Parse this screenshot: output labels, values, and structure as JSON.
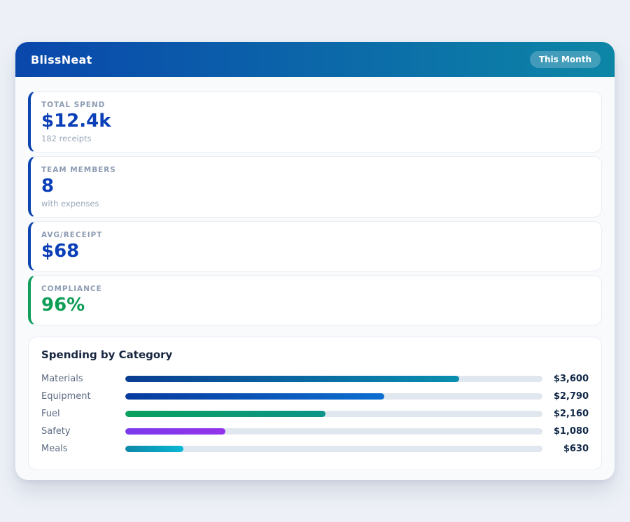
{
  "header": {
    "title": "BlissNeat",
    "badge": "This Month",
    "gradient_from": "#0a47ac",
    "gradient_to": "#0d86a6"
  },
  "stats": [
    {
      "label": "TOTAL SPEND",
      "value": "$12.4k",
      "sub": "182 receipts",
      "accent": "#0b44b0",
      "value_color": "#0b3fb8"
    },
    {
      "label": "TEAM MEMBERS",
      "value": "8",
      "sub": "with expenses",
      "accent": "#0b44b0",
      "value_color": "#0b3fb8"
    },
    {
      "label": "AVG/RECEIPT",
      "value": "$68",
      "sub": "",
      "accent": "#0b44b0",
      "value_color": "#0b3fb8"
    },
    {
      "label": "COMPLIANCE",
      "value": "96%",
      "sub": "",
      "accent": "#0f9e5c",
      "value_color": "#0d9e56"
    }
  ],
  "chart_data": {
    "type": "bar",
    "orientation": "horizontal",
    "title": "Spending by Category",
    "categories": [
      "Materials",
      "Equipment",
      "Fuel",
      "Safety",
      "Meals"
    ],
    "values": [
      3600,
      2790,
      2160,
      1080,
      630
    ],
    "value_labels": [
      "$3,600",
      "$2,790",
      "$2,160",
      "$1,080",
      "$630"
    ],
    "xlim": [
      0,
      4500
    ],
    "grid": false,
    "legend": false,
    "track_color": "#e1e7ef",
    "bar_gradients": [
      [
        "#0a3d91",
        "#0a8fb0"
      ],
      [
        "#083a9e",
        "#0d6fd0"
      ],
      [
        "#0aa05e",
        "#0d9488"
      ],
      [
        "#7c3aed",
        "#9333ea"
      ],
      [
        "#0e87a8",
        "#08b8d4"
      ]
    ]
  }
}
